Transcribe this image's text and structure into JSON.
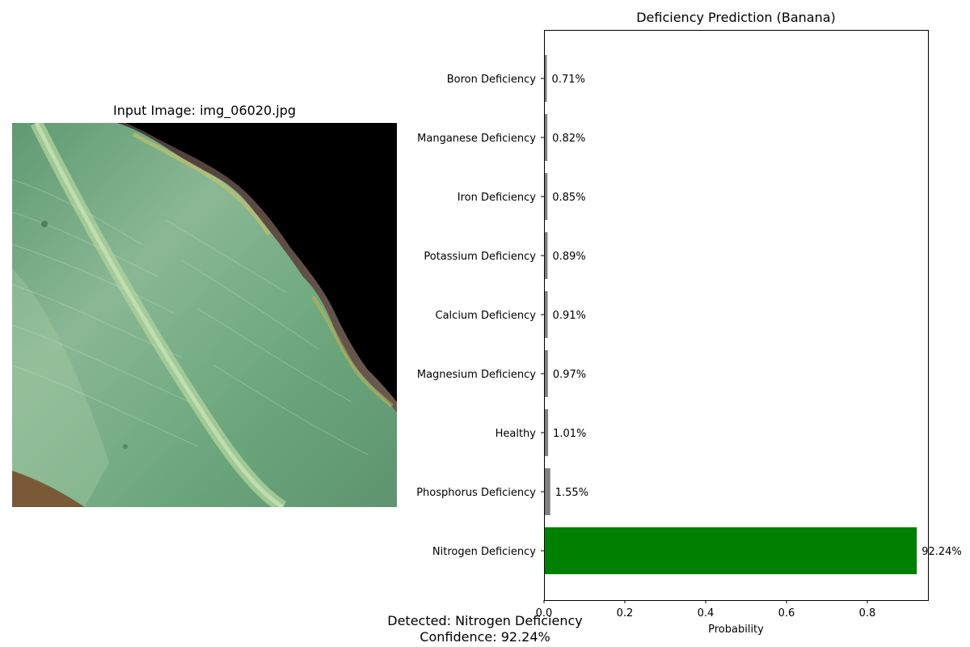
{
  "image_panel": {
    "title": "Input Image: img_06020.jpg"
  },
  "summary": {
    "detected": "Detected: Nitrogen Deficiency",
    "confidence": "Confidence: 92.24%"
  },
  "colors": {
    "highlight": "#008000",
    "bar": "#808080"
  },
  "chart_data": {
    "type": "bar",
    "orientation": "horizontal",
    "title": "Deficiency Prediction (Banana)",
    "xlabel": "Probability",
    "ylabel": "",
    "xlim": [
      0,
      0.95
    ],
    "xticks": [
      "0.0",
      "0.2",
      "0.4",
      "0.6",
      "0.8"
    ],
    "categories": [
      "Nitrogen Deficiency",
      "Phosphorus Deficiency",
      "Healthy",
      "Magnesium Deficiency",
      "Calcium Deficiency",
      "Potassium Deficiency",
      "Iron Deficiency",
      "Manganese Deficiency",
      "Boron Deficiency"
    ],
    "values": [
      0.9224,
      0.0155,
      0.0101,
      0.0097,
      0.0091,
      0.0089,
      0.0085,
      0.0082,
      0.0071
    ],
    "value_labels": [
      "92.24%",
      "1.55%",
      "1.01%",
      "0.97%",
      "0.91%",
      "0.89%",
      "0.85%",
      "0.82%",
      "0.71%"
    ],
    "grid": false
  }
}
